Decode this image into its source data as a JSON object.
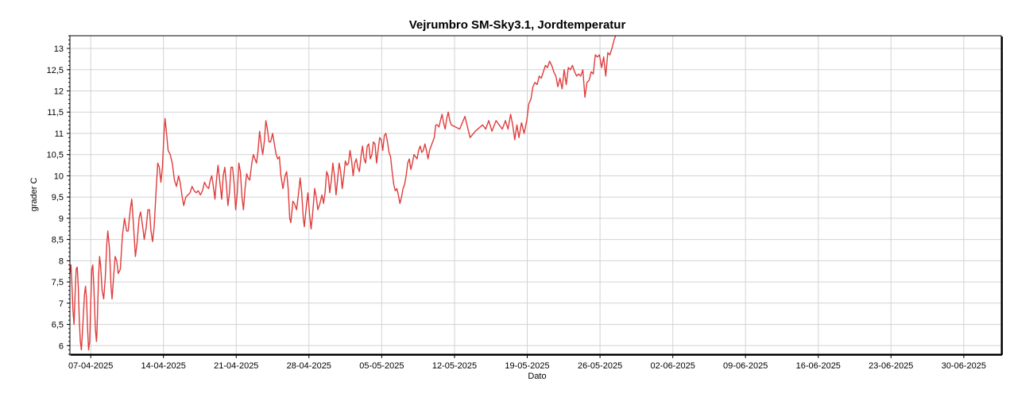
{
  "chart_data": {
    "type": "line",
    "title": "Vejrumbro SM-Sky3.1, Jordtemperatur",
    "xlabel": "Dato",
    "ylabel": "grader C",
    "ylim": [
      5.8,
      13.3
    ],
    "y_ticks": [
      6,
      6.5,
      7,
      7.5,
      8,
      8.5,
      9,
      9.5,
      10,
      10.5,
      11,
      11.5,
      12,
      12.5,
      13
    ],
    "y_tick_labels": [
      "6",
      "6,5",
      "7",
      "7,5",
      "8",
      "8,5",
      "9",
      "9,5",
      "10",
      "10,5",
      "11",
      "11,5",
      "12",
      "12,5",
      "13"
    ],
    "x_ticks": [
      "07-04-2025",
      "14-04-2025",
      "21-04-2025",
      "28-04-2025",
      "05-05-2025",
      "12-05-2025",
      "19-05-2025",
      "26-05-2025",
      "02-06-2025",
      "09-06-2025",
      "16-06-2025",
      "23-06-2025",
      "30-06-2025"
    ],
    "x_tick_days": [
      0,
      7,
      14,
      21,
      28,
      35,
      42,
      49,
      56,
      63,
      70,
      77,
      84
    ],
    "xlim_days": [
      -2.0,
      87.6
    ],
    "grid": true,
    "series": [
      {
        "name": "",
        "color": "#e03c3c",
        "points": [
          [
            -2.0,
            7.7
          ],
          [
            -1.9,
            7.9
          ],
          [
            -1.8,
            7.4
          ],
          [
            -1.7,
            6.8
          ],
          [
            -1.6,
            6.5
          ],
          [
            -1.5,
            7.2
          ],
          [
            -1.4,
            7.8
          ],
          [
            -1.3,
            7.85
          ],
          [
            -1.2,
            7.4
          ],
          [
            -1.1,
            6.6
          ],
          [
            -1.0,
            6.1
          ],
          [
            -0.9,
            5.9
          ],
          [
            -0.8,
            6.3
          ],
          [
            -0.6,
            7.2
          ],
          [
            -0.5,
            7.4
          ],
          [
            -0.4,
            7.1
          ],
          [
            -0.3,
            6.4
          ],
          [
            -0.2,
            5.9
          ],
          [
            -0.1,
            6.1
          ],
          [
            0.0,
            7.0
          ],
          [
            0.1,
            7.8
          ],
          [
            0.2,
            7.9
          ],
          [
            0.3,
            7.4
          ],
          [
            0.45,
            6.4
          ],
          [
            0.55,
            6.1
          ],
          [
            0.6,
            6.3
          ],
          [
            0.75,
            7.6
          ],
          [
            0.85,
            8.1
          ],
          [
            0.95,
            7.9
          ],
          [
            1.1,
            7.3
          ],
          [
            1.25,
            7.1
          ],
          [
            1.4,
            7.6
          ],
          [
            1.55,
            8.4
          ],
          [
            1.65,
            8.7
          ],
          [
            1.8,
            8.3
          ],
          [
            1.95,
            7.4
          ],
          [
            2.05,
            7.1
          ],
          [
            2.2,
            7.6
          ],
          [
            2.35,
            8.1
          ],
          [
            2.5,
            8.0
          ],
          [
            2.65,
            7.7
          ],
          [
            2.85,
            7.8
          ],
          [
            3.05,
            8.6
          ],
          [
            3.25,
            9.0
          ],
          [
            3.45,
            8.7
          ],
          [
            3.6,
            8.7
          ],
          [
            3.8,
            9.2
          ],
          [
            3.95,
            9.45
          ],
          [
            4.1,
            8.9
          ],
          [
            4.3,
            8.1
          ],
          [
            4.45,
            8.4
          ],
          [
            4.65,
            9.0
          ],
          [
            4.8,
            9.15
          ],
          [
            5.0,
            8.8
          ],
          [
            5.15,
            8.5
          ],
          [
            5.35,
            8.8
          ],
          [
            5.5,
            9.2
          ],
          [
            5.65,
            9.2
          ],
          [
            5.8,
            8.7
          ],
          [
            5.95,
            8.45
          ],
          [
            6.1,
            8.8
          ],
          [
            6.3,
            9.7
          ],
          [
            6.45,
            10.3
          ],
          [
            6.6,
            10.2
          ],
          [
            6.75,
            9.85
          ],
          [
            6.9,
            10.2
          ],
          [
            7.05,
            11.0
          ],
          [
            7.15,
            11.35
          ],
          [
            7.3,
            11.0
          ],
          [
            7.45,
            10.6
          ],
          [
            7.65,
            10.5
          ],
          [
            7.85,
            10.3
          ],
          [
            8.05,
            9.9
          ],
          [
            8.25,
            9.75
          ],
          [
            8.45,
            10.0
          ],
          [
            8.6,
            9.85
          ],
          [
            8.8,
            9.5
          ],
          [
            8.95,
            9.3
          ],
          [
            9.15,
            9.5
          ],
          [
            9.35,
            9.55
          ],
          [
            9.55,
            9.6
          ],
          [
            9.75,
            9.75
          ],
          [
            9.95,
            9.65
          ],
          [
            10.15,
            9.6
          ],
          [
            10.35,
            9.65
          ],
          [
            10.55,
            9.55
          ],
          [
            10.75,
            9.65
          ],
          [
            10.95,
            9.85
          ],
          [
            11.15,
            9.75
          ],
          [
            11.35,
            9.7
          ],
          [
            11.5,
            9.9
          ],
          [
            11.65,
            10.0
          ],
          [
            11.8,
            9.75
          ],
          [
            11.95,
            9.45
          ],
          [
            12.1,
            9.9
          ],
          [
            12.25,
            10.25
          ],
          [
            12.4,
            9.9
          ],
          [
            12.6,
            9.45
          ],
          [
            12.75,
            10.0
          ],
          [
            12.9,
            10.2
          ],
          [
            13.05,
            9.8
          ],
          [
            13.2,
            9.3
          ],
          [
            13.35,
            9.6
          ],
          [
            13.5,
            10.2
          ],
          [
            13.65,
            10.2
          ],
          [
            13.8,
            9.8
          ],
          [
            13.95,
            9.2
          ],
          [
            14.1,
            9.6
          ],
          [
            14.25,
            10.3
          ],
          [
            14.4,
            10.1
          ],
          [
            14.55,
            9.5
          ],
          [
            14.7,
            9.2
          ],
          [
            14.85,
            9.7
          ],
          [
            15.0,
            10.05
          ],
          [
            15.15,
            9.95
          ],
          [
            15.3,
            9.9
          ],
          [
            15.5,
            10.3
          ],
          [
            15.65,
            10.5
          ],
          [
            15.8,
            10.4
          ],
          [
            15.95,
            10.3
          ],
          [
            16.1,
            10.6
          ],
          [
            16.25,
            11.05
          ],
          [
            16.4,
            10.75
          ],
          [
            16.55,
            10.5
          ],
          [
            16.7,
            10.8
          ],
          [
            16.85,
            11.3
          ],
          [
            17.0,
            11.1
          ],
          [
            17.15,
            10.8
          ],
          [
            17.3,
            10.8
          ],
          [
            17.5,
            11.0
          ],
          [
            17.7,
            10.7
          ],
          [
            17.85,
            10.5
          ],
          [
            18.0,
            10.4
          ],
          [
            18.15,
            10.45
          ],
          [
            18.3,
            10.0
          ],
          [
            18.5,
            9.7
          ],
          [
            18.7,
            10.0
          ],
          [
            18.85,
            10.1
          ],
          [
            19.0,
            9.7
          ],
          [
            19.15,
            9.0
          ],
          [
            19.25,
            8.9
          ],
          [
            19.45,
            9.4
          ],
          [
            19.6,
            9.35
          ],
          [
            19.8,
            9.2
          ],
          [
            20.0,
            9.6
          ],
          [
            20.15,
            9.95
          ],
          [
            20.3,
            9.6
          ],
          [
            20.45,
            9.0
          ],
          [
            20.55,
            8.8
          ],
          [
            20.75,
            9.3
          ],
          [
            20.9,
            9.6
          ],
          [
            21.05,
            9.1
          ],
          [
            21.2,
            8.75
          ],
          [
            21.35,
            9.1
          ],
          [
            21.55,
            9.7
          ],
          [
            21.7,
            9.5
          ],
          [
            21.85,
            9.2
          ],
          [
            22.05,
            9.35
          ],
          [
            22.25,
            9.55
          ],
          [
            22.4,
            9.35
          ],
          [
            22.55,
            9.6
          ],
          [
            22.7,
            10.1
          ],
          [
            22.85,
            10.0
          ],
          [
            23.0,
            9.6
          ],
          [
            23.15,
            9.9
          ],
          [
            23.3,
            10.3
          ],
          [
            23.45,
            10.0
          ],
          [
            23.6,
            9.55
          ],
          [
            23.75,
            9.9
          ],
          [
            23.9,
            10.3
          ],
          [
            24.05,
            10.1
          ],
          [
            24.2,
            9.7
          ],
          [
            24.35,
            10.0
          ],
          [
            24.5,
            10.35
          ],
          [
            24.65,
            10.25
          ],
          [
            24.8,
            10.3
          ],
          [
            24.95,
            10.6
          ],
          [
            25.1,
            10.35
          ],
          [
            25.25,
            10.0
          ],
          [
            25.4,
            10.3
          ],
          [
            25.55,
            10.4
          ],
          [
            25.7,
            10.2
          ],
          [
            25.85,
            10.1
          ],
          [
            26.0,
            10.45
          ],
          [
            26.15,
            10.7
          ],
          [
            26.3,
            10.4
          ],
          [
            26.45,
            10.3
          ],
          [
            26.6,
            10.7
          ],
          [
            26.75,
            10.75
          ],
          [
            26.9,
            10.4
          ],
          [
            27.05,
            10.5
          ],
          [
            27.2,
            10.8
          ],
          [
            27.35,
            10.75
          ],
          [
            27.5,
            10.3
          ],
          [
            27.65,
            10.6
          ],
          [
            27.8,
            10.9
          ],
          [
            27.95,
            10.85
          ],
          [
            28.1,
            10.6
          ],
          [
            28.25,
            10.95
          ],
          [
            28.4,
            11.0
          ],
          [
            28.55,
            10.8
          ],
          [
            28.7,
            10.55
          ],
          [
            28.85,
            10.45
          ],
          [
            29.0,
            10.1
          ],
          [
            29.15,
            9.8
          ],
          [
            29.3,
            9.65
          ],
          [
            29.45,
            9.7
          ],
          [
            29.6,
            9.55
          ],
          [
            29.75,
            9.35
          ],
          [
            29.9,
            9.5
          ],
          [
            30.05,
            9.7
          ],
          [
            30.2,
            9.8
          ],
          [
            30.35,
            10.0
          ],
          [
            30.5,
            10.3
          ],
          [
            30.65,
            10.4
          ],
          [
            30.8,
            10.15
          ],
          [
            30.95,
            10.3
          ],
          [
            31.1,
            10.5
          ],
          [
            31.25,
            10.45
          ],
          [
            31.4,
            10.4
          ],
          [
            31.55,
            10.6
          ],
          [
            31.7,
            10.7
          ],
          [
            31.85,
            10.55
          ],
          [
            32.0,
            10.6
          ],
          [
            32.15,
            10.75
          ],
          [
            32.3,
            10.6
          ],
          [
            32.45,
            10.4
          ],
          [
            32.6,
            10.6
          ],
          [
            32.75,
            10.7
          ],
          [
            32.9,
            10.8
          ],
          [
            33.05,
            10.9
          ],
          [
            33.2,
            11.2
          ],
          [
            33.35,
            11.2
          ],
          [
            33.5,
            11.15
          ],
          [
            33.65,
            11.3
          ],
          [
            33.8,
            11.45
          ],
          [
            33.95,
            11.25
          ],
          [
            34.1,
            11.1
          ],
          [
            34.25,
            11.35
          ],
          [
            34.4,
            11.5
          ],
          [
            34.55,
            11.3
          ],
          [
            34.7,
            11.2
          ],
          [
            35.5,
            11.1
          ],
          [
            36.0,
            11.4
          ],
          [
            36.5,
            10.9
          ],
          [
            37.0,
            11.05
          ],
          [
            37.7,
            11.2
          ],
          [
            38.0,
            11.1
          ],
          [
            38.3,
            11.3
          ],
          [
            38.6,
            11.05
          ],
          [
            39.0,
            11.3
          ],
          [
            39.3,
            11.2
          ],
          [
            39.6,
            11.1
          ],
          [
            39.9,
            11.3
          ],
          [
            40.15,
            11.1
          ],
          [
            40.4,
            11.45
          ],
          [
            40.6,
            11.2
          ],
          [
            40.8,
            10.85
          ],
          [
            41.0,
            11.2
          ],
          [
            41.2,
            10.9
          ],
          [
            41.45,
            11.25
          ],
          [
            41.7,
            11.0
          ],
          [
            41.95,
            11.3
          ],
          [
            42.15,
            11.7
          ],
          [
            42.35,
            11.8
          ],
          [
            42.55,
            12.1
          ],
          [
            42.75,
            12.2
          ],
          [
            42.95,
            12.15
          ],
          [
            43.15,
            12.35
          ],
          [
            43.35,
            12.3
          ],
          [
            43.55,
            12.45
          ],
          [
            43.75,
            12.6
          ],
          [
            43.95,
            12.55
          ],
          [
            44.15,
            12.7
          ],
          [
            44.35,
            12.6
          ],
          [
            44.55,
            12.45
          ],
          [
            44.75,
            12.35
          ],
          [
            44.95,
            12.1
          ],
          [
            45.15,
            12.3
          ],
          [
            45.35,
            12.05
          ],
          [
            45.55,
            12.5
          ],
          [
            45.75,
            12.15
          ],
          [
            45.95,
            12.55
          ],
          [
            46.15,
            12.5
          ],
          [
            46.35,
            12.6
          ],
          [
            46.55,
            12.45
          ],
          [
            46.75,
            12.35
          ],
          [
            46.95,
            12.4
          ],
          [
            47.15,
            12.35
          ],
          [
            47.35,
            12.5
          ],
          [
            47.55,
            11.85
          ],
          [
            47.75,
            12.2
          ],
          [
            47.95,
            12.25
          ],
          [
            48.15,
            12.45
          ],
          [
            48.35,
            12.4
          ],
          [
            48.55,
            12.85
          ],
          [
            48.75,
            12.8
          ],
          [
            48.95,
            12.85
          ],
          [
            49.15,
            12.55
          ],
          [
            49.35,
            12.8
          ],
          [
            49.55,
            12.35
          ],
          [
            49.75,
            12.9
          ],
          [
            49.95,
            12.85
          ],
          [
            50.15,
            13.0
          ],
          [
            50.35,
            13.2
          ],
          [
            50.5,
            13.3
          ]
        ]
      }
    ]
  }
}
